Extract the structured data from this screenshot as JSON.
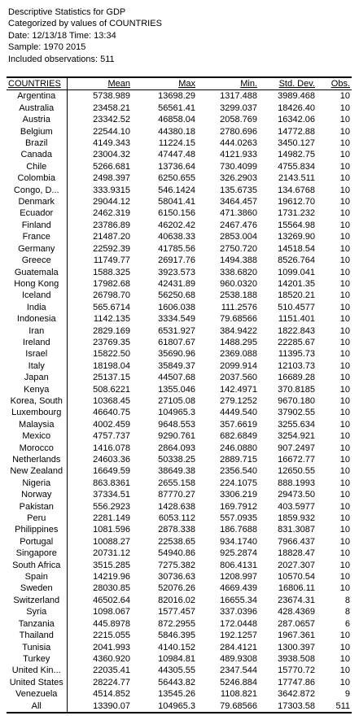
{
  "header": {
    "line1": "Descriptive Statistics for GDP",
    "line2": "Categorized by values of COUNTRIES",
    "line3": "Date: 12/13/18   Time: 13:34",
    "line4": "Sample: 1970 2015",
    "line5": "Included observations: 511"
  },
  "columns": [
    "COUNTRIES",
    "Mean",
    "Max",
    "Min.",
    "Std. Dev.",
    "Obs."
  ],
  "rows": [
    [
      "Argentina",
      "5738.989",
      "13698.29",
      "1317.488",
      "3989.468",
      "10"
    ],
    [
      "Australia",
      "23458.21",
      "56561.41",
      "3299.037",
      "18426.40",
      "10"
    ],
    [
      "Austria",
      "23342.52",
      "46858.04",
      "2058.769",
      "16342.06",
      "10"
    ],
    [
      "Belgium",
      "22544.10",
      "44380.18",
      "2780.696",
      "14772.88",
      "10"
    ],
    [
      "Brazil",
      "4149.343",
      "11224.15",
      "444.0263",
      "3450.127",
      "10"
    ],
    [
      "Canada",
      "23004.32",
      "47447.48",
      "4121.933",
      "14982.75",
      "10"
    ],
    [
      "Chile",
      "5266.681",
      "13736.64",
      "730.4099",
      "4755.834",
      "10"
    ],
    [
      "Colombia",
      "2498.397",
      "6250.655",
      "326.2903",
      "2143.511",
      "10"
    ],
    [
      "Congo, D...",
      "333.9315",
      "546.1424",
      "135.6735",
      "134.6768",
      "10"
    ],
    [
      "Denmark",
      "29044.12",
      "58041.41",
      "3464.457",
      "19612.70",
      "10"
    ],
    [
      "Ecuador",
      "2462.319",
      "6150.156",
      "471.3860",
      "1731.232",
      "10"
    ],
    [
      "Finland",
      "23786.89",
      "46202.42",
      "2467.476",
      "15564.98",
      "10"
    ],
    [
      "France",
      "21487.20",
      "40638.33",
      "2853.004",
      "13269.90",
      "10"
    ],
    [
      "Germany",
      "22592.39",
      "41785.56",
      "2750.720",
      "14518.54",
      "10"
    ],
    [
      "Greece",
      "11749.77",
      "26917.76",
      "1494.388",
      "8526.764",
      "10"
    ],
    [
      "Guatemala",
      "1588.325",
      "3923.573",
      "338.6820",
      "1099.041",
      "10"
    ],
    [
      "Hong Kong",
      "17982.68",
      "42431.89",
      "960.0320",
      "14201.35",
      "10"
    ],
    [
      "Iceland",
      "26798.70",
      "56250.68",
      "2538.188",
      "18520.21",
      "10"
    ],
    [
      "India",
      "565.6714",
      "1606.038",
      "111.2576",
      "510.4577",
      "10"
    ],
    [
      "Indonesia",
      "1142.135",
      "3334.549",
      "79.68566",
      "1151.401",
      "10"
    ],
    [
      "Iran",
      "2829.169",
      "6531.927",
      "384.9422",
      "1822.843",
      "10"
    ],
    [
      "Ireland",
      "23769.35",
      "61807.67",
      "1488.295",
      "22285.67",
      "10"
    ],
    [
      "Israel",
      "15822.50",
      "35690.96",
      "2369.088",
      "11395.73",
      "10"
    ],
    [
      "Italy",
      "18198.04",
      "35849.37",
      "2099.914",
      "12103.73",
      "10"
    ],
    [
      "Japan",
      "25137.15",
      "44507.68",
      "2037.560",
      "16689.28",
      "10"
    ],
    [
      "Kenya",
      "508.6221",
      "1355.046",
      "142.4971",
      "370.8185",
      "10"
    ],
    [
      "Korea, South",
      "10368.45",
      "27105.08",
      "279.1252",
      "9670.180",
      "10"
    ],
    [
      "Luxembourg",
      "46640.75",
      "104965.3",
      "4449.540",
      "37902.55",
      "10"
    ],
    [
      "Malaysia",
      "4002.459",
      "9648.553",
      "357.6619",
      "3255.634",
      "10"
    ],
    [
      "Mexico",
      "4757.737",
      "9290.761",
      "682.6849",
      "3254.921",
      "10"
    ],
    [
      "Morocco",
      "1416.078",
      "2864.093",
      "246.0880",
      "907.2497",
      "10"
    ],
    [
      "Netherlands",
      "24603.36",
      "50338.25",
      "2889.715",
      "16672.77",
      "10"
    ],
    [
      "New Zealand",
      "16649.59",
      "38649.38",
      "2356.540",
      "12650.55",
      "10"
    ],
    [
      "Nigeria",
      "863.8361",
      "2655.158",
      "224.1075",
      "888.1993",
      "10"
    ],
    [
      "Norway",
      "37334.51",
      "87770.27",
      "3306.219",
      "29473.50",
      "10"
    ],
    [
      "Pakistan",
      "556.2923",
      "1428.638",
      "169.7912",
      "403.5977",
      "10"
    ],
    [
      "Peru",
      "2281.149",
      "6053.112",
      "557.0935",
      "1859.932",
      "10"
    ],
    [
      "Philippines",
      "1081.596",
      "2878.338",
      "186.7688",
      "831.3087",
      "10"
    ],
    [
      "Portugal",
      "10088.27",
      "22538.65",
      "934.1740",
      "7966.437",
      "10"
    ],
    [
      "Singapore",
      "20731.12",
      "54940.86",
      "925.2874",
      "18828.47",
      "10"
    ],
    [
      "South Africa",
      "3515.285",
      "7275.382",
      "806.4131",
      "2027.307",
      "10"
    ],
    [
      "Spain",
      "14219.96",
      "30736.63",
      "1208.997",
      "10570.54",
      "10"
    ],
    [
      "Sweden",
      "28030.85",
      "52076.26",
      "4669.439",
      "16806.11",
      "10"
    ],
    [
      "Switzerland",
      "46502.64",
      "82016.02",
      "16655.34",
      "23674.31",
      "8"
    ],
    [
      "Syria",
      "1098.067",
      "1577.457",
      "337.0396",
      "428.4369",
      "8"
    ],
    [
      "Tanzania",
      "445.8978",
      "872.2955",
      "172.0448",
      "287.0657",
      "6"
    ],
    [
      "Thailand",
      "2215.055",
      "5846.395",
      "192.1257",
      "1967.361",
      "10"
    ],
    [
      "Tunisia",
      "2041.993",
      "4140.152",
      "284.4121",
      "1300.397",
      "10"
    ],
    [
      "Turkey",
      "4360.920",
      "10984.81",
      "489.9308",
      "3938.508",
      "10"
    ],
    [
      "United Kin...",
      "22035.41",
      "44305.55",
      "2347.544",
      "15770.72",
      "10"
    ],
    [
      "United States",
      "28224.77",
      "56443.82",
      "5246.884",
      "17747.86",
      "10"
    ],
    [
      "Venezuela",
      "4514.852",
      "13545.26",
      "1108.821",
      "3642.872",
      "9"
    ],
    [
      "All",
      "13390.07",
      "104965.3",
      "79.68566",
      "17303.58",
      "511"
    ]
  ]
}
